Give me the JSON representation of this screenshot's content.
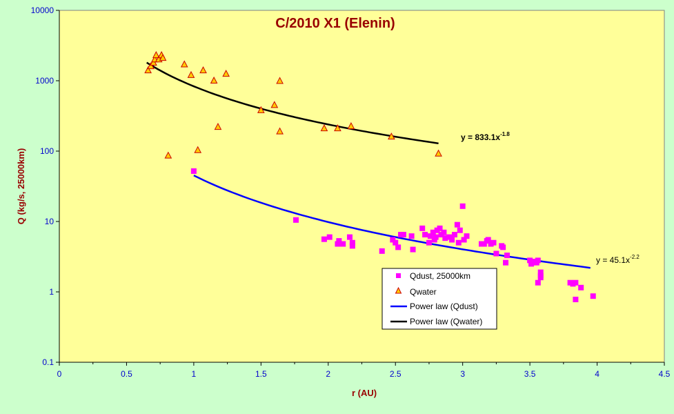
{
  "colors": {
    "background": "#ccffcc",
    "plot_area": "#ffff99",
    "title": "#990000",
    "axis_label": "#990000",
    "tick_label": "#0000cc",
    "dust_marker": "#ff00ff",
    "water_marker_fill": "#ffcc00",
    "water_marker_edge": "#cc0000",
    "dust_fit_line": "#0000ff",
    "water_fit_line": "#000000"
  },
  "chart_data": {
    "type": "scatter",
    "title": "C/2010 X1 (Elenin)",
    "xlabel": "r (AU)",
    "ylabel": "Q (kg/s, 25000km)",
    "xlim": [
      0,
      4.5
    ],
    "ylim": [
      0.1,
      10000
    ],
    "y_scale": "log",
    "x_ticks": [
      "0",
      "0.5",
      "1",
      "1.5",
      "2",
      "2.5",
      "3",
      "3.5",
      "4",
      "4.5"
    ],
    "y_ticks": [
      "0.1",
      "1",
      "10",
      "100",
      "1000",
      "10000"
    ],
    "grid": false,
    "legend_position": "center-right",
    "series": [
      {
        "name": "Qdust, 25000km",
        "marker": "square",
        "points": [
          [
            1.0,
            52
          ],
          [
            1.76,
            10.5
          ],
          [
            1.97,
            5.6
          ],
          [
            2.01,
            6.0
          ],
          [
            2.07,
            4.8
          ],
          [
            2.08,
            5.3
          ],
          [
            2.11,
            4.8
          ],
          [
            2.16,
            6.0
          ],
          [
            2.18,
            5.0
          ],
          [
            2.18,
            4.5
          ],
          [
            2.4,
            3.8
          ],
          [
            2.48,
            5.5
          ],
          [
            2.5,
            5.0
          ],
          [
            2.52,
            4.3
          ],
          [
            2.54,
            6.5
          ],
          [
            2.56,
            6.5
          ],
          [
            2.62,
            6.2
          ],
          [
            2.63,
            4.0
          ],
          [
            2.7,
            8.0
          ],
          [
            2.72,
            6.5
          ],
          [
            2.75,
            5.0
          ],
          [
            2.76,
            6.2
          ],
          [
            2.78,
            7.0
          ],
          [
            2.79,
            5.5
          ],
          [
            2.8,
            6.0
          ],
          [
            2.81,
            7.5
          ],
          [
            2.83,
            8.0
          ],
          [
            2.84,
            6.5
          ],
          [
            2.86,
            7.0
          ],
          [
            2.87,
            5.8
          ],
          [
            2.9,
            6.0
          ],
          [
            2.92,
            5.5
          ],
          [
            2.94,
            6.5
          ],
          [
            2.96,
            9.0
          ],
          [
            2.97,
            5.0
          ],
          [
            2.98,
            7.5
          ],
          [
            3.0,
            16.5
          ],
          [
            3.01,
            5.5
          ],
          [
            3.03,
            6.2
          ],
          [
            3.14,
            4.8
          ],
          [
            3.16,
            4.8
          ],
          [
            3.18,
            5.3
          ],
          [
            3.19,
            5.5
          ],
          [
            3.21,
            4.8
          ],
          [
            3.23,
            5.0
          ],
          [
            3.25,
            3.5
          ],
          [
            3.29,
            4.5
          ],
          [
            3.3,
            4.3
          ],
          [
            3.32,
            2.6
          ],
          [
            3.33,
            3.3
          ],
          [
            3.5,
            2.8
          ],
          [
            3.51,
            2.5
          ],
          [
            3.53,
            2.7
          ],
          [
            3.55,
            2.6
          ],
          [
            3.56,
            2.8
          ],
          [
            3.56,
            1.35
          ],
          [
            3.58,
            1.9
          ],
          [
            3.58,
            1.7
          ],
          [
            3.58,
            1.6
          ],
          [
            3.8,
            1.35
          ],
          [
            3.82,
            1.3
          ],
          [
            3.84,
            1.35
          ],
          [
            3.84,
            0.78
          ],
          [
            3.88,
            1.15
          ],
          [
            3.97,
            0.87
          ]
        ]
      },
      {
        "name": "Qwater",
        "marker": "triangle",
        "points": [
          [
            0.66,
            1400
          ],
          [
            0.68,
            1600
          ],
          [
            0.7,
            1800
          ],
          [
            0.71,
            2000
          ],
          [
            0.72,
            2300
          ],
          [
            0.74,
            2000
          ],
          [
            0.76,
            2300
          ],
          [
            0.77,
            2100
          ],
          [
            0.81,
            86
          ],
          [
            0.93,
            1700
          ],
          [
            0.98,
            1200
          ],
          [
            1.03,
            103
          ],
          [
            1.07,
            1400
          ],
          [
            1.15,
            1000
          ],
          [
            1.18,
            220
          ],
          [
            1.24,
            1250
          ],
          [
            1.5,
            380
          ],
          [
            1.6,
            450
          ],
          [
            1.64,
            990
          ],
          [
            1.64,
            190
          ],
          [
            1.97,
            210
          ],
          [
            2.07,
            210
          ],
          [
            2.17,
            225
          ],
          [
            2.47,
            160
          ],
          [
            2.82,
            92
          ]
        ]
      },
      {
        "name": "Power law (Qdust)",
        "type": "line",
        "fit": {
          "a": 45.1,
          "b": -2.2,
          "x_range": [
            1.0,
            3.95
          ]
        }
      },
      {
        "name": "Power law (Qwater)",
        "type": "line",
        "fit": {
          "a": 833.1,
          "b": -1.8,
          "x_range": [
            0.65,
            2.82
          ]
        }
      }
    ],
    "annotations": [
      {
        "id": "water-eq",
        "text_main": "y = 833.1x",
        "text_exp": "-1.8",
        "near": "water-fit-end"
      },
      {
        "id": "dust-eq",
        "text_main": "y = 45.1x",
        "text_exp": "-2.2",
        "near": "dust-fit-end"
      }
    ]
  }
}
